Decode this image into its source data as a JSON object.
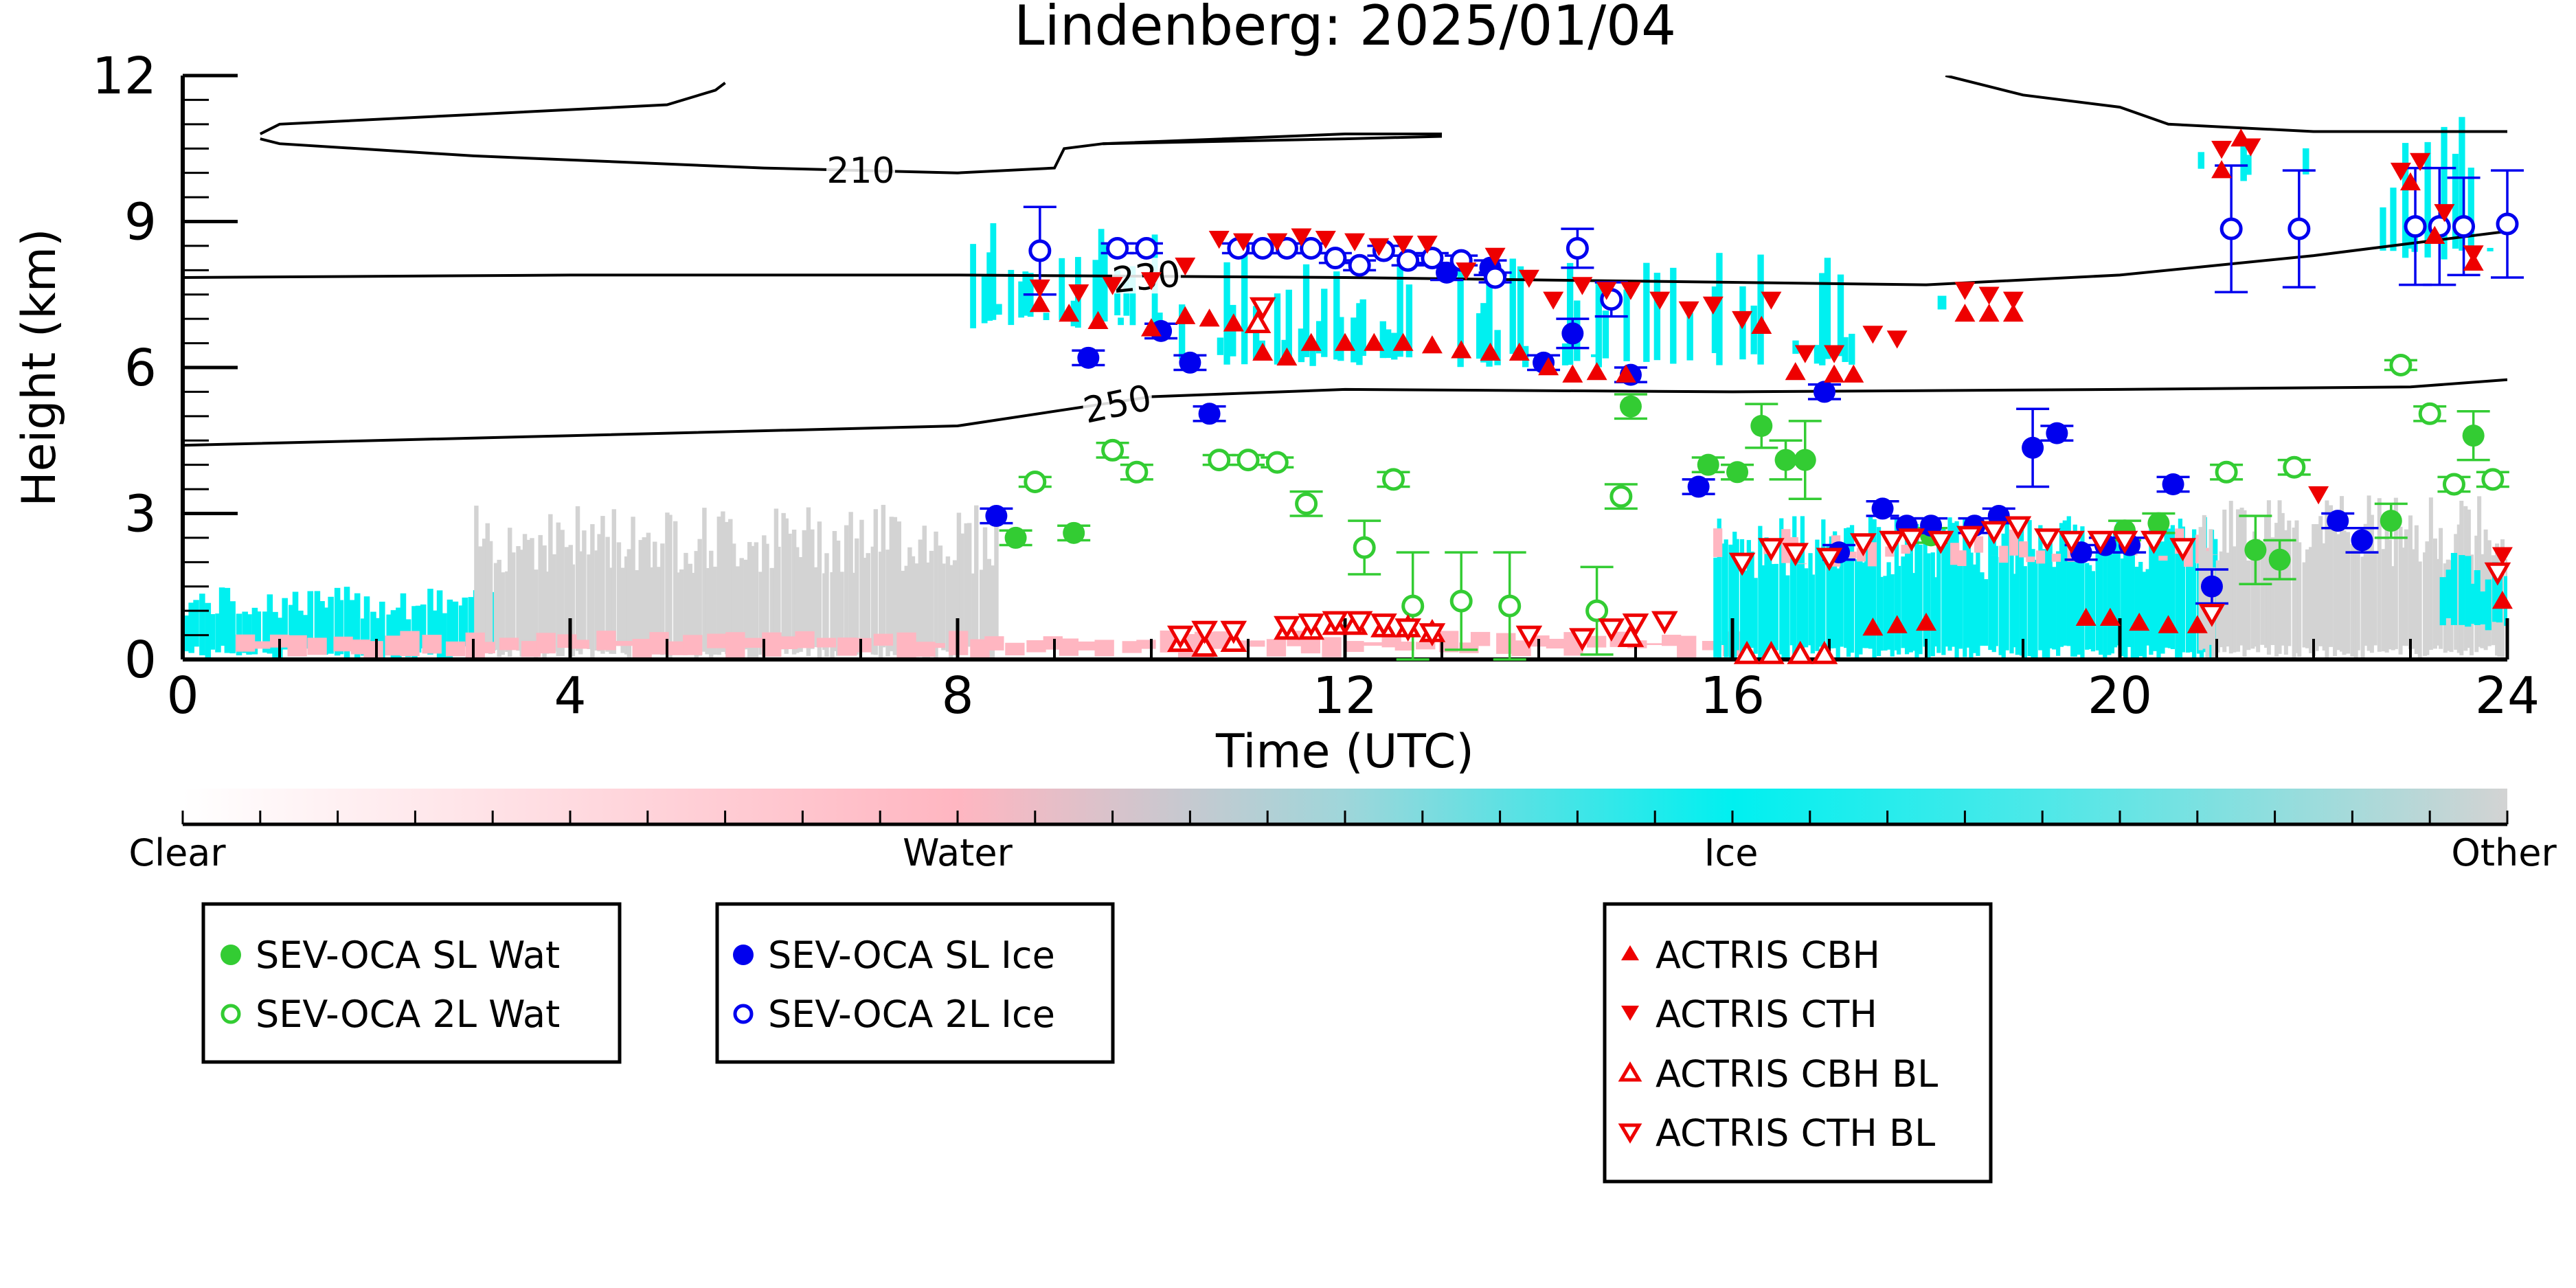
{
  "chart_data": {
    "type": "scatter",
    "title": "Lindenberg: 2025/01/04",
    "xlabel": "Time (UTC)",
    "ylabel": "Height (km)",
    "xlim": [
      0,
      24
    ],
    "ylim": [
      0,
      12
    ],
    "xticks": [
      "0",
      "4",
      "8",
      "12",
      "16",
      "20",
      "24"
    ],
    "yticks": [
      "0",
      "3",
      "6",
      "9",
      "12"
    ],
    "colorbar": {
      "labels": [
        "Clear",
        "Water",
        "Ice",
        "Other"
      ],
      "colors": [
        "#ffffff",
        "#ffb6c1",
        "#00f0f0",
        "#d3d3d3"
      ]
    },
    "temperature_contours": [
      {
        "label": "210",
        "points": [
          [
            0.8,
            10.7
          ],
          [
            1,
            10.6
          ],
          [
            3,
            10.35
          ],
          [
            6,
            10.1
          ],
          [
            8,
            10.0
          ],
          [
            9,
            10.1
          ],
          [
            9.1,
            10.5
          ],
          [
            9.5,
            10.6
          ],
          [
            12,
            10.7
          ],
          [
            13,
            10.75
          ]
        ]
      },
      {
        "label": "210",
        "points": [
          [
            0.8,
            10.8
          ],
          [
            1,
            11.0
          ],
          [
            3,
            11.2
          ],
          [
            5,
            11.4
          ],
          [
            5.5,
            11.7
          ],
          [
            5.6,
            11.85
          ]
        ]
      },
      {
        "label": "210",
        "points": [
          [
            9.5,
            10.6
          ],
          [
            12,
            10.8
          ],
          [
            13,
            10.8
          ]
        ]
      },
      {
        "label": "210",
        "points": [
          [
            18.2,
            12.0
          ],
          [
            19,
            11.6
          ],
          [
            20,
            11.35
          ],
          [
            20.5,
            11.0
          ],
          [
            22,
            10.85
          ],
          [
            24,
            10.85
          ]
        ]
      },
      {
        "label": "230",
        "points": [
          [
            0,
            7.85
          ],
          [
            4,
            7.9
          ],
          [
            8,
            7.9
          ],
          [
            12,
            7.85
          ],
          [
            16,
            7.75
          ],
          [
            18,
            7.7
          ],
          [
            20,
            7.9
          ],
          [
            22,
            8.3
          ],
          [
            24,
            8.8
          ]
        ]
      },
      {
        "label": "250",
        "points": [
          [
            0,
            4.4
          ],
          [
            4,
            4.6
          ],
          [
            8,
            4.8
          ],
          [
            10,
            5.4
          ],
          [
            12,
            5.55
          ],
          [
            16,
            5.5
          ],
          [
            20,
            5.55
          ],
          [
            23,
            5.6
          ],
          [
            24,
            5.75
          ]
        ]
      }
    ],
    "series": [
      {
        "name": "SEV-OCA SL Wat",
        "color": "#33cc33",
        "marker": "circle-filled",
        "points": [
          [
            8.6,
            2.5
          ],
          [
            9.2,
            2.6
          ],
          [
            14.95,
            5.2
          ],
          [
            15.75,
            4.0
          ],
          [
            16.05,
            3.85
          ],
          [
            16.3,
            4.8
          ],
          [
            16.55,
            4.1
          ],
          [
            16.75,
            4.1
          ],
          [
            18.05,
            2.55
          ],
          [
            20.05,
            2.65
          ],
          [
            20.4,
            2.8
          ],
          [
            21.4,
            2.25
          ],
          [
            21.65,
            2.05
          ],
          [
            22.8,
            2.85
          ],
          [
            23.65,
            4.6
          ]
        ],
        "yerr": [
          0.15,
          0.15,
          0.25,
          0.15,
          0.15,
          0.45,
          0.4,
          0.8,
          0.15,
          0.2,
          0.2,
          0.7,
          0.4,
          0.35,
          0.5
        ]
      },
      {
        "name": "SEV-OCA 2L Wat",
        "color": "#33cc33",
        "marker": "circle-open",
        "points": [
          [
            8.8,
            3.65
          ],
          [
            9.6,
            4.3
          ],
          [
            9.85,
            3.85
          ],
          [
            10.7,
            4.1
          ],
          [
            11.0,
            4.1
          ],
          [
            11.3,
            4.05
          ],
          [
            11.6,
            3.2
          ],
          [
            12.2,
            2.3
          ],
          [
            12.5,
            3.7
          ],
          [
            12.7,
            1.1
          ],
          [
            13.2,
            1.2
          ],
          [
            13.7,
            1.1
          ],
          [
            14.6,
            1.0
          ],
          [
            14.85,
            3.35
          ],
          [
            21.1,
            3.85
          ],
          [
            21.8,
            3.95
          ],
          [
            22.9,
            6.05
          ],
          [
            23.2,
            5.05
          ],
          [
            23.45,
            3.6
          ],
          [
            23.85,
            3.7
          ]
        ],
        "yerr": [
          0.1,
          0.15,
          0.15,
          0.1,
          0.1,
          0.1,
          0.25,
          0.55,
          0.15,
          1.1,
          1.0,
          1.1,
          0.9,
          0.25,
          0.15,
          0.15,
          0.1,
          0.15,
          0.15,
          0.15
        ]
      },
      {
        "name": "SEV-OCA SL Ice",
        "color": "#0000ee",
        "marker": "circle-filled",
        "points": [
          [
            8.4,
            2.95
          ],
          [
            9.35,
            6.2
          ],
          [
            10.1,
            6.75
          ],
          [
            10.4,
            6.1
          ],
          [
            10.6,
            5.05
          ],
          [
            13.05,
            7.95
          ],
          [
            13.5,
            8.05
          ],
          [
            14.05,
            6.1
          ],
          [
            14.35,
            6.7
          ],
          [
            14.95,
            5.85
          ],
          [
            15.65,
            3.55
          ],
          [
            16.95,
            5.5
          ],
          [
            17.1,
            2.2
          ],
          [
            17.55,
            3.1
          ],
          [
            17.8,
            2.75
          ],
          [
            18.05,
            2.75
          ],
          [
            18.5,
            2.75
          ],
          [
            18.75,
            2.95
          ],
          [
            19.1,
            4.35
          ],
          [
            19.35,
            4.65
          ],
          [
            19.6,
            2.2
          ],
          [
            19.85,
            2.35
          ],
          [
            20.1,
            2.35
          ],
          [
            20.55,
            3.6
          ],
          [
            20.95,
            1.5
          ],
          [
            22.25,
            2.85
          ],
          [
            22.5,
            2.45
          ]
        ],
        "yerr": [
          0.15,
          0.15,
          0.15,
          0.15,
          0.15,
          0.15,
          0.15,
          0.15,
          0.3,
          0.15,
          0.15,
          0.15,
          0.15,
          0.15,
          0.15,
          0.15,
          0.15,
          0.15,
          0.8,
          0.15,
          0.15,
          0.15,
          0.15,
          0.15,
          0.35,
          0.15,
          0.25
        ]
      },
      {
        "name": "SEV-OCA 2L Ice",
        "color": "#0000ee",
        "marker": "circle-open",
        "points": [
          [
            8.85,
            8.4
          ],
          [
            9.65,
            8.45
          ],
          [
            9.95,
            8.45
          ],
          [
            10.9,
            8.45
          ],
          [
            11.15,
            8.45
          ],
          [
            11.4,
            8.45
          ],
          [
            11.65,
            8.45
          ],
          [
            11.9,
            8.25
          ],
          [
            12.15,
            8.1
          ],
          [
            12.4,
            8.4
          ],
          [
            12.65,
            8.2
          ],
          [
            12.9,
            8.25
          ],
          [
            13.2,
            8.2
          ],
          [
            13.55,
            7.85
          ],
          [
            14.4,
            8.45
          ],
          [
            14.75,
            7.4
          ],
          [
            21.15,
            8.85
          ],
          [
            21.85,
            8.85
          ],
          [
            23.05,
            8.9
          ],
          [
            23.3,
            8.9
          ],
          [
            23.55,
            8.9
          ],
          [
            24.0,
            8.95
          ]
        ],
        "yerr": [
          0.9,
          0.1,
          0.1,
          0.1,
          0.1,
          0.1,
          0.1,
          0.1,
          0.1,
          0.1,
          0.1,
          0.1,
          0.1,
          0.1,
          0.4,
          0.35,
          1.3,
          1.2,
          1.2,
          1.2,
          1.0,
          1.1
        ]
      },
      {
        "name": "ACTRIS CBH",
        "color": "#ee0000",
        "marker": "triangle-up-filled",
        "points": [
          [
            8.85,
            7.3
          ],
          [
            9.15,
            7.1
          ],
          [
            9.45,
            6.95
          ],
          [
            10.0,
            6.8
          ],
          [
            10.35,
            7.05
          ],
          [
            10.6,
            7.0
          ],
          [
            10.85,
            6.9
          ],
          [
            11.15,
            6.3
          ],
          [
            11.4,
            6.2
          ],
          [
            11.65,
            6.5
          ],
          [
            12.0,
            6.5
          ],
          [
            12.3,
            6.5
          ],
          [
            12.6,
            6.5
          ],
          [
            12.9,
            6.45
          ],
          [
            13.2,
            6.35
          ],
          [
            13.5,
            6.3
          ],
          [
            13.8,
            6.3
          ],
          [
            14.1,
            6.0
          ],
          [
            14.35,
            5.85
          ],
          [
            14.6,
            5.9
          ],
          [
            14.9,
            5.85
          ],
          [
            16.3,
            6.85
          ],
          [
            16.65,
            5.9
          ],
          [
            17.05,
            5.85
          ],
          [
            17.25,
            5.85
          ],
          [
            17.45,
            0.65
          ],
          [
            17.7,
            0.7
          ],
          [
            18.0,
            0.75
          ],
          [
            18.4,
            7.1
          ],
          [
            18.65,
            7.1
          ],
          [
            18.9,
            7.1
          ],
          [
            19.65,
            0.85
          ],
          [
            19.9,
            0.85
          ],
          [
            20.2,
            0.75
          ],
          [
            20.5,
            0.7
          ],
          [
            20.8,
            0.7
          ],
          [
            21.05,
            10.05
          ],
          [
            21.25,
            10.7
          ],
          [
            23.0,
            9.8
          ],
          [
            23.25,
            8.7
          ],
          [
            23.65,
            8.15
          ],
          [
            23.95,
            1.2
          ]
        ]
      },
      {
        "name": "ACTRIS CTH",
        "color": "#ee0000",
        "marker": "triangle-down-filled",
        "points": [
          [
            8.85,
            7.65
          ],
          [
            9.25,
            7.55
          ],
          [
            9.6,
            7.7
          ],
          [
            10.0,
            7.8
          ],
          [
            10.35,
            8.1
          ],
          [
            10.7,
            8.65
          ],
          [
            10.95,
            8.6
          ],
          [
            11.3,
            8.6
          ],
          [
            11.55,
            8.7
          ],
          [
            11.8,
            8.65
          ],
          [
            12.1,
            8.6
          ],
          [
            12.35,
            8.5
          ],
          [
            12.6,
            8.55
          ],
          [
            12.85,
            8.55
          ],
          [
            13.25,
            8.0
          ],
          [
            13.55,
            8.3
          ],
          [
            13.9,
            7.85
          ],
          [
            14.15,
            7.4
          ],
          [
            14.45,
            7.7
          ],
          [
            14.7,
            7.6
          ],
          [
            14.95,
            7.6
          ],
          [
            15.25,
            7.4
          ],
          [
            15.55,
            7.2
          ],
          [
            15.8,
            7.3
          ],
          [
            16.1,
            7.0
          ],
          [
            16.4,
            7.4
          ],
          [
            16.75,
            6.3
          ],
          [
            17.05,
            6.3
          ],
          [
            17.45,
            6.7
          ],
          [
            17.7,
            6.6
          ],
          [
            18.4,
            7.6
          ],
          [
            18.65,
            7.5
          ],
          [
            18.9,
            7.4
          ],
          [
            21.05,
            10.5
          ],
          [
            21.35,
            10.55
          ],
          [
            22.9,
            10.05
          ],
          [
            23.1,
            10.25
          ],
          [
            23.35,
            9.2
          ],
          [
            23.65,
            8.35
          ],
          [
            22.05,
            3.4
          ],
          [
            23.95,
            2.15
          ]
        ]
      },
      {
        "name": "ACTRIS CBH BL",
        "color": "#ee0000",
        "marker": "triangle-up-open",
        "points": [
          [
            10.3,
            0.35
          ],
          [
            10.55,
            0.25
          ],
          [
            10.85,
            0.35
          ],
          [
            11.1,
            6.9
          ],
          [
            11.4,
            0.6
          ],
          [
            11.65,
            0.6
          ],
          [
            11.9,
            0.7
          ],
          [
            12.1,
            0.7
          ],
          [
            12.4,
            0.65
          ],
          [
            12.65,
            0.65
          ],
          [
            12.9,
            0.55
          ],
          [
            14.95,
            0.45
          ],
          [
            16.15,
            0.1
          ],
          [
            16.4,
            0.1
          ],
          [
            16.7,
            0.1
          ],
          [
            16.95,
            0.1
          ]
        ]
      },
      {
        "name": "ACTRIS CTH BL",
        "color": "#ee0000",
        "marker": "triangle-down-open",
        "points": [
          [
            10.3,
            0.5
          ],
          [
            10.55,
            0.6
          ],
          [
            10.85,
            0.6
          ],
          [
            11.15,
            7.25
          ],
          [
            11.4,
            0.7
          ],
          [
            11.65,
            0.75
          ],
          [
            11.9,
            0.8
          ],
          [
            12.15,
            0.8
          ],
          [
            12.4,
            0.75
          ],
          [
            12.65,
            0.65
          ],
          [
            12.9,
            0.55
          ],
          [
            13.9,
            0.5
          ],
          [
            14.45,
            0.45
          ],
          [
            14.75,
            0.65
          ],
          [
            15.0,
            0.75
          ],
          [
            15.3,
            0.8
          ],
          [
            16.1,
            2.0
          ],
          [
            16.4,
            2.3
          ],
          [
            16.65,
            2.2
          ],
          [
            17.0,
            2.1
          ],
          [
            17.35,
            2.4
          ],
          [
            17.65,
            2.45
          ],
          [
            17.85,
            2.5
          ],
          [
            18.15,
            2.45
          ],
          [
            18.45,
            2.55
          ],
          [
            18.7,
            2.65
          ],
          [
            18.95,
            2.75
          ],
          [
            19.25,
            2.5
          ],
          [
            19.5,
            2.45
          ],
          [
            19.8,
            2.45
          ],
          [
            20.05,
            2.45
          ],
          [
            20.35,
            2.45
          ],
          [
            20.65,
            2.3
          ],
          [
            20.95,
            0.95
          ],
          [
            23.9,
            1.8
          ]
        ]
      }
    ],
    "legends": [
      [
        "SEV-OCA SL Wat",
        "SEV-OCA 2L Wat"
      ],
      [
        "SEV-OCA SL Ice",
        "SEV-OCA 2L Ice"
      ],
      [
        "ACTRIS CBH",
        "ACTRIS CTH",
        "ACTRIS CBH BL",
        "ACTRIS CTH BL"
      ]
    ]
  }
}
